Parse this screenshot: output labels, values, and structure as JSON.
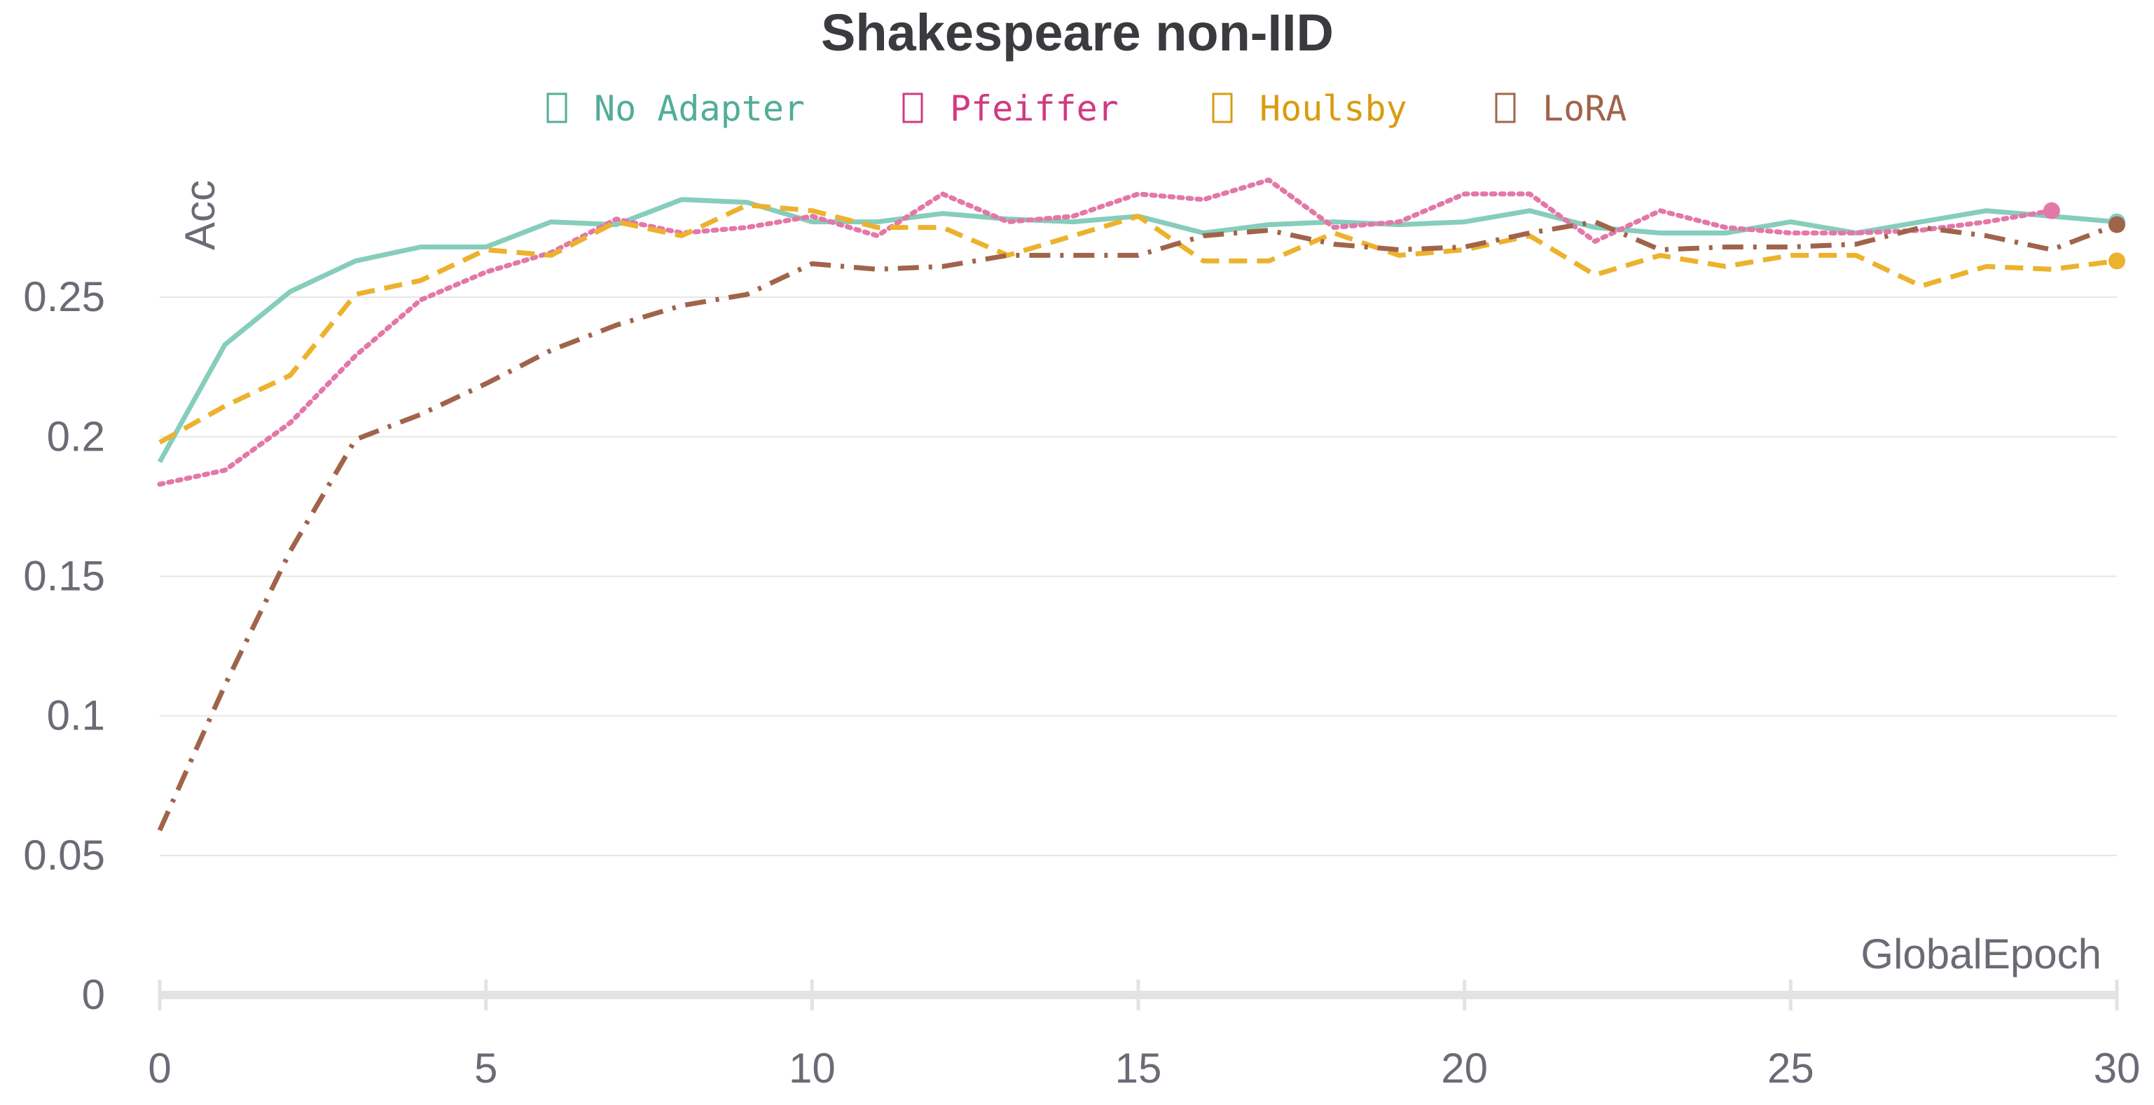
{
  "chart_data": {
    "type": "line",
    "title": "Shakespeare non-IID",
    "xlabel": "GlobalEpoch",
    "ylabel": "Acc",
    "xlim": [
      0,
      30
    ],
    "ylim": [
      0,
      0.3
    ],
    "x_ticks": [
      "0",
      "5",
      "10",
      "15",
      "20",
      "25",
      "30"
    ],
    "y_ticks": [
      "0",
      "0.05",
      "0.1",
      "0.15",
      "0.2",
      "0.25"
    ],
    "grid": true,
    "legend_position": "top",
    "x": [
      0,
      1,
      2,
      3,
      4,
      5,
      6,
      7,
      8,
      9,
      10,
      11,
      12,
      13,
      14,
      15,
      16,
      17,
      18,
      19,
      20,
      21,
      22,
      23,
      24,
      25,
      26,
      27,
      28,
      29,
      30
    ],
    "series": [
      {
        "name": "No Adapter",
        "color": "#86cdbc",
        "legend_color": "#52ad98",
        "dash": "solid",
        "end_marker": 30,
        "values": [
          0.191,
          0.233,
          0.252,
          0.263,
          0.268,
          0.268,
          0.277,
          0.276,
          0.285,
          0.284,
          0.277,
          0.277,
          0.28,
          0.278,
          0.277,
          0.279,
          0.273,
          0.276,
          0.277,
          0.276,
          0.277,
          0.281,
          0.275,
          0.273,
          0.273,
          0.277,
          0.273,
          0.277,
          0.281,
          0.279,
          0.277
        ]
      },
      {
        "name": "Pfeiffer",
        "color": "#e377a8",
        "legend_color": "#d13a82",
        "dash": "dotted",
        "end_marker": 29,
        "values": [
          0.183,
          0.188,
          0.205,
          0.229,
          0.249,
          0.259,
          0.266,
          0.278,
          0.273,
          0.275,
          0.279,
          0.272,
          0.287,
          0.277,
          0.279,
          0.287,
          0.285,
          0.292,
          0.275,
          0.277,
          0.287,
          0.287,
          0.27,
          0.281,
          0.275,
          0.273,
          0.273,
          0.274,
          0.277,
          0.281,
          null
        ]
      },
      {
        "name": "Houlsby",
        "color": "#ecb22e",
        "legend_color": "#d99c10",
        "dash": "dashed",
        "end_marker": 30,
        "values": [
          0.198,
          0.211,
          0.222,
          0.251,
          0.256,
          0.267,
          0.265,
          0.277,
          0.272,
          0.283,
          0.281,
          0.275,
          0.275,
          0.265,
          0.272,
          0.279,
          0.263,
          0.263,
          0.273,
          0.265,
          0.267,
          0.272,
          0.258,
          0.265,
          0.261,
          0.265,
          0.265,
          0.254,
          0.261,
          0.26,
          0.263
        ]
      },
      {
        "name": "LoRA",
        "color": "#a0644b",
        "legend_color": "#a0644b",
        "dash": "dashdot",
        "end_marker": 30,
        "values": [
          0.059,
          0.111,
          0.159,
          0.199,
          0.208,
          0.219,
          0.231,
          0.24,
          0.247,
          0.251,
          0.262,
          0.26,
          0.261,
          0.265,
          0.265,
          0.265,
          0.272,
          0.274,
          0.269,
          0.267,
          0.268,
          0.273,
          0.277,
          0.267,
          0.268,
          0.268,
          0.269,
          0.275,
          0.272,
          0.267,
          0.276
        ]
      }
    ]
  }
}
